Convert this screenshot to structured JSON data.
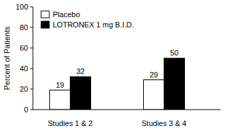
{
  "chart_data": {
    "type": "bar",
    "y_label": "Percent of Patients",
    "categories": [
      "Studies 1 & 2",
      "Studies 3 & 4"
    ],
    "series": [
      {
        "name": "Placebo",
        "color": "#ffffff",
        "values": [
          19,
          29
        ]
      },
      {
        "name": "LOTRONEX 1 mg B.I.D.",
        "color": "#000000",
        "values": [
          32,
          50
        ]
      }
    ],
    "ylim": [
      0,
      100
    ],
    "yticks": [
      0,
      20,
      40,
      60,
      80,
      100
    ],
    "grid": false,
    "legend": "upper left",
    "data_labels": true
  }
}
